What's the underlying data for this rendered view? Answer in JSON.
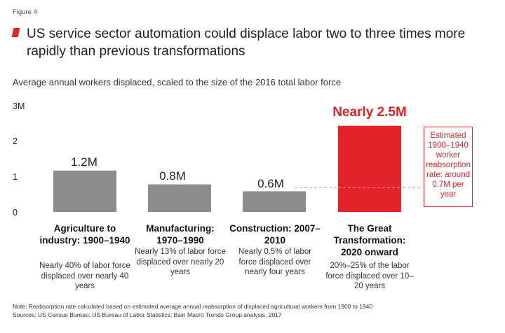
{
  "figure_label": "Figure 4",
  "title": "US service sector automation could displace labor two to three times more rapidly than previous transformations",
  "subtitle": "Average annual workers displaced, scaled to the size of the 2016 total labor force",
  "colors": {
    "accent": "#e3232a",
    "bar": "#8c8c8c",
    "reference_line": "#aaaaaa"
  },
  "chart_data": {
    "type": "bar",
    "title": "US service sector automation could displace labor two to three times more rapidly than previous transformations",
    "ylabel": "Average annual workers displaced, scaled to the size of the 2016 total labor force",
    "ylim": [
      0,
      3
    ],
    "yticks": [
      "0",
      "1",
      "2",
      "3M"
    ],
    "grid": false,
    "categories": [
      "Agriculture to industry: 1900–1940",
      "Manufacturing: 1970–1990",
      "Construction: 2007–2010",
      "The Great Transformation: 2020 onward"
    ],
    "values": [
      1.2,
      0.8,
      0.6,
      2.5
    ],
    "data_labels": [
      "1.2M",
      "0.8M",
      "0.6M",
      "Nearly 2.5M"
    ],
    "highlight_index": 3,
    "reference_line": {
      "value": 0.7,
      "label": "Estimated 1900–1940 worker reabsorption rate: around 0.7M per year"
    }
  },
  "bars": [
    {
      "title": "Agriculture to industry: 1900–1940",
      "desc": "Nearly 40% of labor force displaced over nearly 40 years"
    },
    {
      "title": "Manufacturing: 1970–1990",
      "desc": "Nearly 13% of labor force displaced over nearly 20 years"
    },
    {
      "title": "Construction: 2007–2010",
      "desc": "Nearly 0.5% of labor force displaced over nearly four years"
    },
    {
      "title": "The Great Transformation: 2020 onward",
      "desc": "20%–25% of the labor force displaced over 10–20 years"
    }
  ],
  "note": "Note: Reabsorption rate calculated based on estimated average annual reabsorption of displaced agricultural workers from 1900 to 1940",
  "sources": "Sources: US Census Bureau; US Bureau of Labor Statistics; Bain Macro Trends Group analysis, 2017"
}
